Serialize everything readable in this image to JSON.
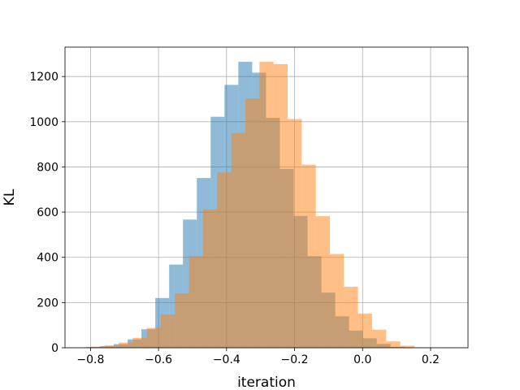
{
  "chart_data": {
    "type": "bar",
    "title": "",
    "xlabel": "iteration",
    "ylabel": "KL",
    "xlim": [
      -0.875,
      0.31
    ],
    "ylim": [
      0,
      1330
    ],
    "grid": true,
    "legend": "none",
    "xticks": [
      -0.8,
      -0.6,
      -0.4,
      -0.2,
      0.0,
      0.2
    ],
    "xtick_labels": [
      "−0.8",
      "−0.6",
      "−0.4",
      "−0.2",
      "0.0",
      "0.2"
    ],
    "yticks": [
      0,
      200,
      400,
      600,
      800,
      1000,
      1200
    ],
    "ytick_labels": [
      "0",
      "200",
      "400",
      "600",
      "800",
      "1000",
      "1200"
    ],
    "series": [
      {
        "color": "#1f77b4",
        "opacity": 0.5,
        "bin_edges": [
          -0.813,
          -0.7723,
          -0.7316,
          -0.6909,
          -0.6502,
          -0.6095,
          -0.5688,
          -0.5281,
          -0.4874,
          -0.4467,
          -0.406,
          -0.3653,
          -0.3246,
          -0.2839,
          -0.2432,
          -0.2025,
          -0.1618,
          -0.1211,
          -0.0804,
          -0.0397,
          0.001,
          0.0417,
          0.0824,
          0.1231,
          0.1638
        ],
        "counts": [
          3,
          7,
          16,
          37,
          82,
          220,
          368,
          567,
          751,
          1022,
          1163,
          1265,
          1217,
          1017,
          791,
          583,
          405,
          244,
          139,
          76,
          42,
          17,
          4,
          1
        ]
      },
      {
        "color": "#ff7f0e",
        "opacity": 0.5,
        "bin_edges": [
          -0.8,
          -0.7586,
          -0.7172,
          -0.6758,
          -0.6344,
          -0.593,
          -0.5516,
          -0.5102,
          -0.4688,
          -0.4274,
          -0.386,
          -0.3446,
          -0.3032,
          -0.2618,
          -0.2204,
          -0.179,
          -0.1376,
          -0.0962,
          -0.0548,
          -0.0134,
          0.028,
          0.0694,
          0.1108,
          0.1522,
          0.1936,
          0.235,
          0.2764
        ],
        "counts": [
          5,
          11,
          23,
          44,
          88,
          147,
          241,
          405,
          612,
          775,
          950,
          1103,
          1265,
          1255,
          1012,
          810,
          582,
          415,
          270,
          151,
          80,
          28,
          9,
          2,
          0,
          1
        ]
      }
    ]
  }
}
